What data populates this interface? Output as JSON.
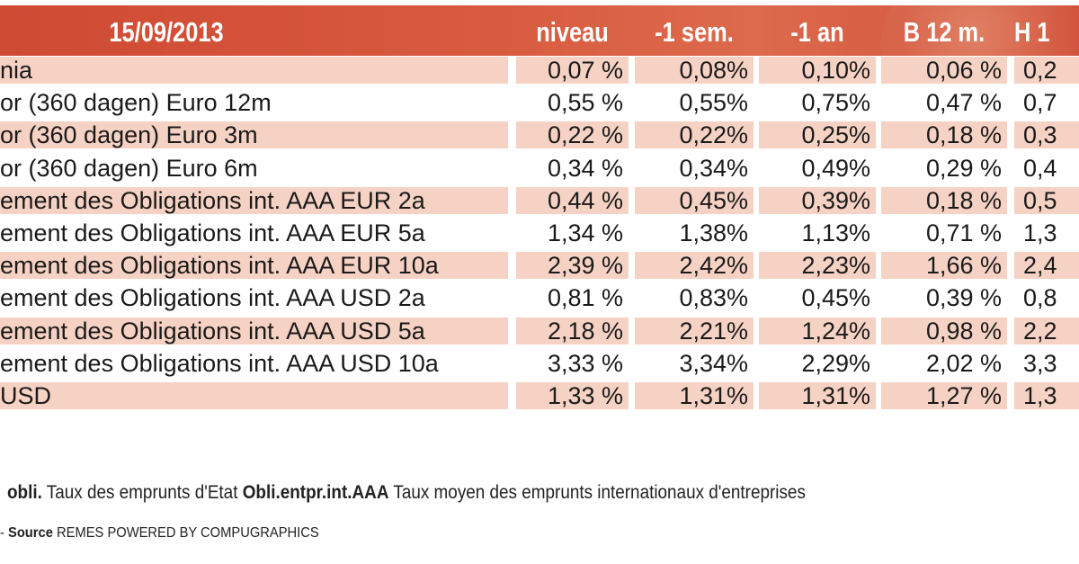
{
  "header": {
    "date": "15/09/2013",
    "columns": [
      "niveau",
      "-1 sem.",
      "-1 an",
      "B 12 m.",
      "H 1"
    ]
  },
  "rows": [
    {
      "label": "nia",
      "values": [
        "0,07 %",
        "0,08%",
        "0,10%",
        "0,06 %",
        "0,2"
      ]
    },
    {
      "label": "or (360 dagen) Euro 12m",
      "values": [
        "0,55 %",
        "0,55%",
        "0,75%",
        "0,47 %",
        "0,7"
      ]
    },
    {
      "label": "or (360 dagen) Euro 3m",
      "values": [
        "0,22 %",
        "0,22%",
        "0,25%",
        "0,18 %",
        "0,3"
      ]
    },
    {
      "label": "or (360 dagen) Euro 6m",
      "values": [
        "0,34 %",
        "0,34%",
        "0,49%",
        "0,29 %",
        "0,4"
      ]
    },
    {
      "label": "ement des Obligations int. AAA EUR 2a",
      "values": [
        "0,44 %",
        "0,45%",
        "0,39%",
        "0,18 %",
        "0,5"
      ]
    },
    {
      "label": "ement des Obligations int. AAA EUR 5a",
      "values": [
        "1,34 %",
        "1,38%",
        "1,13%",
        "0,71 %",
        "1,3"
      ]
    },
    {
      "label": "ement des Obligations int. AAA EUR 10a",
      "values": [
        "2,39 %",
        "2,42%",
        "2,23%",
        "1,66 %",
        "2,4"
      ]
    },
    {
      "label": "ement des Obligations int. AAA USD 2a",
      "values": [
        "0,81 %",
        "0,83%",
        "0,45%",
        "0,39 %",
        "0,8"
      ]
    },
    {
      "label": "ement des Obligations int. AAA USD 5a",
      "values": [
        "2,18 %",
        "2,21%",
        "1,24%",
        "0,98 %",
        "2,2"
      ]
    },
    {
      "label": "ement des Obligations int. AAA USD 10a",
      "values": [
        "3,33 %",
        "3,34%",
        "2,29%",
        "2,02 %",
        "3,3"
      ]
    },
    {
      "label": "USD",
      "values": [
        "1,33 %",
        "1,31%",
        "1,31%",
        "1,27 %",
        "1,3"
      ]
    }
  ],
  "footer": {
    "term1": "obli.",
    "def1": "Taux des emprunts d'Etat",
    "term2": "Obli.entpr.int.AAA",
    "def2": "Taux moyen des emprunts internationaux d'entreprises",
    "source_prefix": "-",
    "source_label": "Source",
    "source_value": "REMES POWERED BY COMPUGRAPHICS"
  },
  "colors": {
    "header_bg": "#d4533b",
    "row_shade": "#f6d2c4"
  }
}
